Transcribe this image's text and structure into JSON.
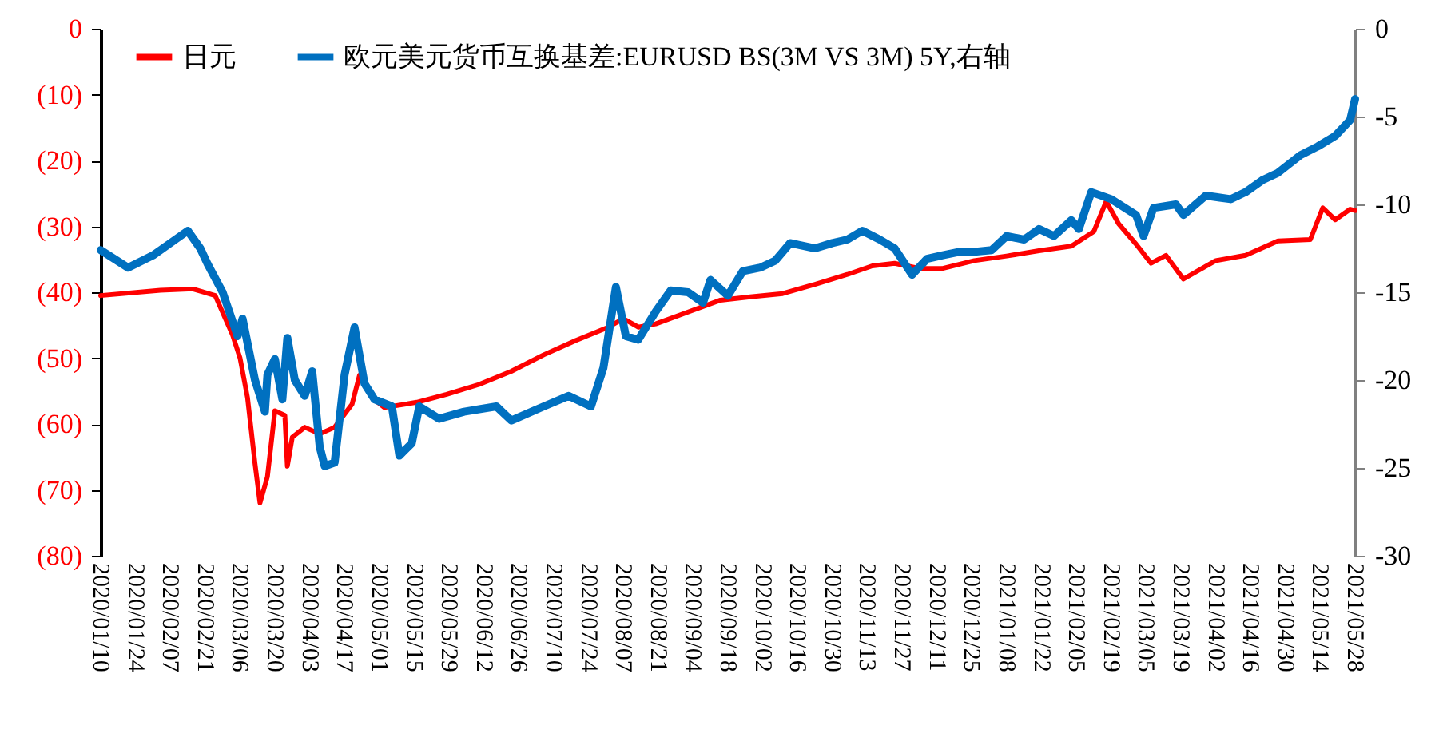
{
  "chart_data": {
    "type": "line",
    "legend": "top",
    "line_style": "solid",
    "xlim": [
      "2020-01-10",
      "2021-05-28"
    ],
    "xticks": [
      {
        "value": "2020-01-10",
        "label": "2020/01/10"
      },
      {
        "value": "2020-01-24",
        "label": "2020/01/24"
      },
      {
        "value": "2020-02-07",
        "label": "2020/02/07"
      },
      {
        "value": "2020-02-21",
        "label": "2020/02/21"
      },
      {
        "value": "2020-03-06",
        "label": "2020/03/06"
      },
      {
        "value": "2020-03-20",
        "label": "2020/03/20"
      },
      {
        "value": "2020-04-03",
        "label": "2020/04/03"
      },
      {
        "value": "2020-04-17",
        "label": "2020/04/17"
      },
      {
        "value": "2020-05-01",
        "label": "2020/05/01"
      },
      {
        "value": "2020-05-15",
        "label": "2020/05/15"
      },
      {
        "value": "2020-05-29",
        "label": "2020/05/29"
      },
      {
        "value": "2020-06-12",
        "label": "2020/06/12"
      },
      {
        "value": "2020-06-26",
        "label": "2020/06/26"
      },
      {
        "value": "2020-07-10",
        "label": "2020/07/10"
      },
      {
        "value": "2020-07-24",
        "label": "2020/07/24"
      },
      {
        "value": "2020-08-07",
        "label": "2020/08/07"
      },
      {
        "value": "2020-08-21",
        "label": "2020/08/21"
      },
      {
        "value": "2020-09-04",
        "label": "2020/09/04"
      },
      {
        "value": "2020-09-18",
        "label": "2020/09/18"
      },
      {
        "value": "2020-10-02",
        "label": "2020/10/02"
      },
      {
        "value": "2020-10-16",
        "label": "2020/10/16"
      },
      {
        "value": "2020-10-30",
        "label": "2020/10/30"
      },
      {
        "value": "2020-11-13",
        "label": "2020/11/13"
      },
      {
        "value": "2020-11-27",
        "label": "2020/11/27"
      },
      {
        "value": "2020-12-11",
        "label": "2020/12/11"
      },
      {
        "value": "2020-12-25",
        "label": "2020/12/25"
      },
      {
        "value": "2021-01-08",
        "label": "2021/01/08"
      },
      {
        "value": "2021-01-22",
        "label": "2021/01/22"
      },
      {
        "value": "2021-02-05",
        "label": "2021/02/05"
      },
      {
        "value": "2021-02-19",
        "label": "2021/02/19"
      },
      {
        "value": "2021-03-05",
        "label": "2021/03/05"
      },
      {
        "value": "2021-03-19",
        "label": "2021/03/19"
      },
      {
        "value": "2021-04-02",
        "label": "2021/04/02"
      },
      {
        "value": "2021-04-16",
        "label": "2021/04/16"
      },
      {
        "value": "2021-04-30",
        "label": "2021/04/30"
      },
      {
        "value": "2021-05-14",
        "label": "2021/05/14"
      },
      {
        "value": "2021-05-28",
        "label": "2021/05/28"
      }
    ],
    "ylim": [
      -80,
      0
    ],
    "yticks": [
      0,
      {
        "value": -10,
        "label": "(10)"
      },
      {
        "value": -20,
        "label": "(20)"
      },
      {
        "value": -30,
        "label": "(30)"
      },
      {
        "value": -40,
        "label": "(40)"
      },
      {
        "value": -50,
        "label": "(50)"
      },
      {
        "value": -60,
        "label": "(60)"
      },
      {
        "value": -70,
        "label": "(70)"
      },
      {
        "value": -80,
        "label": "(80)"
      }
    ],
    "y2lim": [
      -30,
      0
    ],
    "y2ticks": [
      0,
      -5,
      -10,
      -15,
      -20,
      -25,
      -30
    ],
    "series": [
      {
        "name": "日元",
        "color": "#ff0000",
        "x": [
          "2020-01-10",
          "2020-02-03",
          "2020-02-16",
          "2020-02-25",
          "2020-03-03",
          "2020-03-06",
          "2020-03-09",
          "2020-03-12",
          "2020-03-14",
          "2020-03-17",
          "2020-03-20",
          "2020-03-24",
          "2020-03-25",
          "2020-03-27",
          "2020-04-01",
          "2020-04-07",
          "2020-04-13",
          "2020-04-20",
          "2020-04-23",
          "2020-04-28",
          "2020-05-03",
          "2020-05-16",
          "2020-05-28",
          "2020-06-10",
          "2020-06-23",
          "2020-07-06",
          "2020-07-19",
          "2020-08-01",
          "2020-08-07",
          "2020-08-13",
          "2020-08-20",
          "2020-09-02",
          "2020-09-15",
          "2020-09-27",
          "2020-10-10",
          "2020-10-23",
          "2020-11-05",
          "2020-11-15",
          "2020-11-24",
          "2020-12-04",
          "2020-12-13",
          "2020-12-26",
          "2021-01-08",
          "2021-01-21",
          "2021-02-03",
          "2021-02-12",
          "2021-02-17",
          "2021-02-22",
          "2021-03-01",
          "2021-03-07",
          "2021-03-13",
          "2021-03-20",
          "2021-04-02",
          "2021-04-14",
          "2021-04-27",
          "2021-05-10",
          "2021-05-15",
          "2021-05-20",
          "2021-05-26",
          "2021-05-28"
        ],
        "values": [
          -40.5,
          -39.7,
          -39.5,
          -40.5,
          -46.5,
          -50,
          -56,
          -66,
          -72,
          -68,
          -58,
          -58.7,
          -66.4,
          -62,
          -60.5,
          -61.5,
          -60.5,
          -57,
          -52.6,
          -56,
          -57.5,
          -56.7,
          -55.5,
          -54,
          -52,
          -49.5,
          -47.3,
          -45.3,
          -44,
          -45.3,
          -44.8,
          -43,
          -41.2,
          -40.7,
          -40.2,
          -38.8,
          -37.3,
          -36,
          -35.6,
          -36.4,
          -36.4,
          -35.2,
          -34.5,
          -33.7,
          -33,
          -30.8,
          -26.2,
          -29.6,
          -32.7,
          -35.6,
          -34.4,
          -38,
          -35.2,
          -34.4,
          -32.2,
          -32,
          -27.2,
          -29,
          -27.4,
          -27.6
        ]
      },
      {
        "name": "欧元美元货币互换基差:EURUSD BS(3M VS 3M) 5Y,右轴",
        "color": "#0070c0",
        "axis": "y2",
        "x": [
          "2020-01-10",
          "2020-01-21",
          "2020-01-31",
          "2020-02-09",
          "2020-02-14",
          "2020-02-19",
          "2020-02-22",
          "2020-02-28",
          "2020-03-05",
          "2020-03-07",
          "2020-03-12",
          "2020-03-16",
          "2020-03-17",
          "2020-03-20",
          "2020-03-23",
          "2020-03-25",
          "2020-03-28",
          "2020-04-01",
          "2020-04-04",
          "2020-04-07",
          "2020-04-09",
          "2020-04-13",
          "2020-04-17",
          "2020-04-21",
          "2020-04-25",
          "2020-04-29",
          "2020-05-06",
          "2020-05-09",
          "2020-05-14",
          "2020-05-17",
          "2020-05-25",
          "2020-06-04",
          "2020-06-17",
          "2020-06-23",
          "2020-07-06",
          "2020-07-16",
          "2020-07-25",
          "2020-07-30",
          "2020-08-04",
          "2020-08-08",
          "2020-08-13",
          "2020-08-20",
          "2020-08-26",
          "2020-09-02",
          "2020-09-08",
          "2020-09-11",
          "2020-09-18",
          "2020-09-24",
          "2020-10-01",
          "2020-10-07",
          "2020-10-13",
          "2020-10-23",
          "2020-10-30",
          "2020-11-05",
          "2020-11-11",
          "2020-11-18",
          "2020-11-24",
          "2020-12-01",
          "2020-12-07",
          "2020-12-13",
          "2020-12-20",
          "2020-12-26",
          "2021-01-02",
          "2021-01-08",
          "2021-01-15",
          "2021-01-21",
          "2021-01-27",
          "2021-02-03",
          "2021-02-06",
          "2021-02-11",
          "2021-02-19",
          "2021-03-01",
          "2021-03-04",
          "2021-03-08",
          "2021-03-17",
          "2021-03-20",
          "2021-03-29",
          "2021-04-08",
          "2021-04-14",
          "2021-04-21",
          "2021-04-27",
          "2021-05-06",
          "2021-05-13",
          "2021-05-20",
          "2021-05-26",
          "2021-05-28"
        ],
        "values": [
          -12.6,
          -13.6,
          -12.9,
          -12,
          -11.5,
          -12.5,
          -13.4,
          -15,
          -17.5,
          -16.5,
          -20,
          -21.8,
          -19.7,
          -18.8,
          -21.1,
          -17.6,
          -20,
          -20.9,
          -19.5,
          -23.8,
          -24.9,
          -24.7,
          -19.7,
          -17,
          -20.2,
          -21.1,
          -21.5,
          -24.3,
          -23.6,
          -21.5,
          -22.2,
          -21.8,
          -21.5,
          -22.3,
          -21.5,
          -20.9,
          -21.5,
          -19.3,
          -14.7,
          -17.5,
          -17.7,
          -16.1,
          -14.9,
          -15,
          -15.6,
          -14.3,
          -15.2,
          -13.8,
          -13.6,
          -13.2,
          -12.2,
          -12.5,
          -12.2,
          -12,
          -11.5,
          -12,
          -12.5,
          -14,
          -13.1,
          -12.9,
          -12.7,
          -12.7,
          -12.6,
          -11.8,
          -12,
          -11.4,
          -11.8,
          -10.9,
          -11.4,
          -9.3,
          -9.7,
          -10.6,
          -11.8,
          -10.2,
          -10,
          -10.6,
          -9.5,
          -9.7,
          -9.3,
          -8.6,
          -8.2,
          -7.2,
          -6.7,
          -6.1,
          -5.2,
          -4
        ]
      }
    ]
  }
}
